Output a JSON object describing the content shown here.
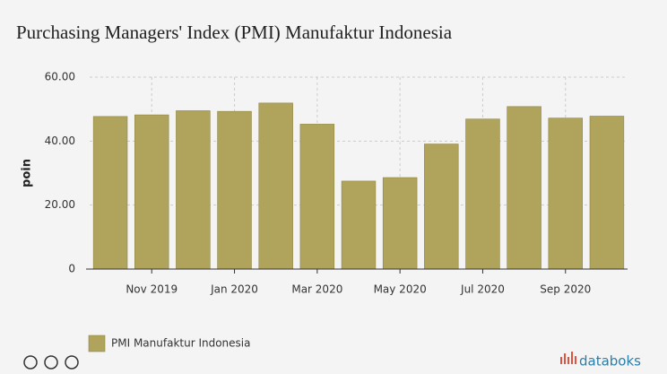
{
  "chart_data": {
    "type": "bar",
    "title": "Purchasing Managers' Index (PMI) Manufaktur Indonesia",
    "y_label": "poin",
    "categories": [
      null,
      "Nov 2019",
      null,
      "Jan 2020",
      null,
      "Mar 2020",
      null,
      "May 2020",
      null,
      "Jul 2020",
      null,
      "Sep 2020",
      null
    ],
    "series": [
      {
        "name": "PMI Manufaktur Indonesia",
        "color": "#b0a45c",
        "values": [
          47.7,
          48.2,
          49.5,
          49.3,
          51.9,
          45.3,
          27.5,
          28.6,
          39.1,
          46.9,
          50.8,
          47.2,
          47.8
        ]
      }
    ],
    "ylim": [
      0,
      60
    ],
    "yticks": [
      0,
      {
        "value": 20,
        "label": "20.00"
      },
      {
        "value": 40,
        "label": "40.00"
      },
      {
        "value": 60,
        "label": "60.00"
      }
    ],
    "grid": true,
    "legend": "bottom-left"
  },
  "footer": {
    "brand": "databoks"
  }
}
